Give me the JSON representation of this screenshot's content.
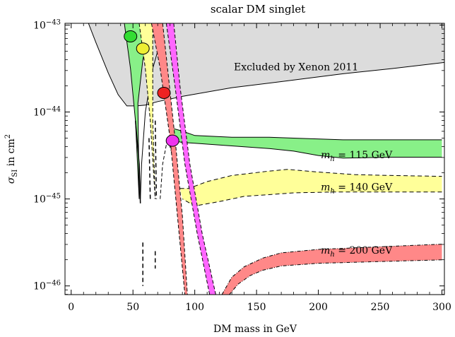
{
  "chart_data": {
    "type": "area",
    "title": "scalar DM singlet",
    "xlabel": "DM mass in GeV",
    "ylabel_main": "σ",
    "ylabel_sub": "SI",
    "ylabel_rest": " in cm",
    "ylabel_sup": "2",
    "xlim": [
      -5,
      302
    ],
    "ylim_log10": [
      -46.1,
      -42.98
    ],
    "y_scale": "log",
    "grid": false,
    "x_ticks": [
      0,
      50,
      100,
      150,
      200,
      250,
      300
    ],
    "y_ticks": [
      {
        "exp": -46,
        "base": "10",
        "sup": "−46"
      },
      {
        "exp": -45,
        "base": "10",
        "sup": "−45"
      },
      {
        "exp": -44,
        "base": "10",
        "sup": "−44"
      },
      {
        "exp": -43,
        "base": "10",
        "sup": "−43"
      }
    ],
    "excluded_region": {
      "label": "Excluded by Xenon 2011",
      "label_at": [
        182,
        -43.52
      ],
      "color": "#dcdcdc",
      "boundary": [
        [
          14,
          -42.98
        ],
        [
          20,
          -43.2
        ],
        [
          30,
          -43.55
        ],
        [
          38,
          -43.8
        ],
        [
          45,
          -43.93
        ],
        [
          53,
          -43.93
        ],
        [
          60,
          -43.92
        ],
        [
          70,
          -43.88
        ],
        [
          90,
          -43.82
        ],
        [
          130,
          -43.72
        ],
        [
          170,
          -43.65
        ],
        [
          220,
          -43.56
        ],
        [
          260,
          -43.5
        ],
        [
          302,
          -43.43
        ]
      ]
    },
    "bands": [
      {
        "name": "115",
        "label_m": "m",
        "label_sub": "h",
        "label_rest": " = 115 GeV",
        "label_at": [
          202,
          -44.53
        ],
        "color": "#88f088",
        "edge": "solid",
        "upper": [
          [
            80,
            -44.18
          ],
          [
            90,
            -44.22
          ],
          [
            100,
            -44.27
          ],
          [
            130,
            -44.29
          ],
          [
            160,
            -44.29
          ],
          [
            180,
            -44.3
          ],
          [
            220,
            -44.32
          ],
          [
            260,
            -44.32
          ],
          [
            300,
            -44.32
          ]
        ],
        "lower": [
          [
            300,
            -44.52
          ],
          [
            260,
            -44.52
          ],
          [
            220,
            -44.53
          ],
          [
            200,
            -44.5
          ],
          [
            180,
            -44.45
          ],
          [
            160,
            -44.42
          ],
          [
            140,
            -44.4
          ],
          [
            120,
            -44.38
          ],
          [
            100,
            -44.36
          ],
          [
            90,
            -44.35
          ],
          [
            82,
            -44.33
          ]
        ]
      },
      {
        "name": "140",
        "label_m": "m",
        "label_sub": "h",
        "label_rest": " = 140 GeV",
        "label_at": [
          202,
          -44.9
        ],
        "color": "#ffff99",
        "edge": "dashed",
        "upper": [
          [
            88,
            -44.88
          ],
          [
            95,
            -44.88
          ],
          [
            110,
            -44.8
          ],
          [
            130,
            -44.73
          ],
          [
            160,
            -44.68
          ],
          [
            175,
            -44.66
          ],
          [
            200,
            -44.69
          ],
          [
            230,
            -44.72
          ],
          [
            260,
            -44.73
          ],
          [
            300,
            -44.74
          ]
        ],
        "lower": [
          [
            300,
            -44.92
          ],
          [
            260,
            -44.92
          ],
          [
            230,
            -44.92
          ],
          [
            210,
            -44.92
          ],
          [
            180,
            -44.93
          ],
          [
            160,
            -44.95
          ],
          [
            140,
            -44.97
          ],
          [
            120,
            -45.03
          ],
          [
            100,
            -45.08
          ],
          [
            90,
            -45.0
          ]
        ]
      },
      {
        "name": "200",
        "label_m": "m",
        "label_sub": "h",
        "label_rest": " = 200 GeV",
        "label_at": [
          202,
          -45.63
        ],
        "color": "#ff8888",
        "edge": "dashdot",
        "upper": [
          [
            122,
            -46.1
          ],
          [
            130,
            -45.9
          ],
          [
            140,
            -45.78
          ],
          [
            155,
            -45.68
          ],
          [
            170,
            -45.62
          ],
          [
            200,
            -45.58
          ],
          [
            250,
            -45.55
          ],
          [
            300,
            -45.52
          ]
        ],
        "lower": [
          [
            300,
            -45.7
          ],
          [
            250,
            -45.72
          ],
          [
            200,
            -45.74
          ],
          [
            170,
            -45.77
          ],
          [
            155,
            -45.82
          ],
          [
            145,
            -45.88
          ],
          [
            135,
            -45.98
          ],
          [
            128,
            -46.1
          ]
        ]
      }
    ],
    "resonance_curves": [
      {
        "name": "115",
        "color": "#88f088",
        "edge": "#000",
        "left": [
          [
            43,
            -42.98
          ],
          [
            48,
            -43.5
          ],
          [
            52,
            -44.1
          ],
          [
            55,
            -45.0
          ]
        ],
        "right": [
          [
            64,
            -42.98
          ],
          [
            58,
            -43.4
          ],
          [
            54,
            -43.9
          ],
          [
            55,
            -45.0
          ]
        ],
        "spike": [
          [
            56,
            -45.0
          ],
          [
            57,
            -44.6
          ],
          [
            60,
            -44.0
          ],
          [
            66,
            -43.5
          ],
          [
            70,
            -43.3
          ],
          [
            74,
            -43.5
          ],
          [
            78,
            -44.0
          ],
          [
            82,
            -44.3
          ]
        ]
      },
      {
        "name": "140",
        "color": "#ffff99",
        "edge": "#000",
        "left": [
          [
            55,
            -42.98
          ],
          [
            60,
            -43.5
          ],
          [
            64,
            -44.1
          ],
          [
            68,
            -45.0
          ]
        ],
        "right": [
          [
            66,
            -42.98
          ],
          [
            66,
            -43.5
          ],
          [
            66,
            -44.1
          ],
          [
            68,
            -45.0
          ]
        ],
        "spike": [
          [
            72,
            -45.0
          ],
          [
            74,
            -44.6
          ],
          [
            78,
            -44.3
          ],
          [
            84,
            -44.6
          ],
          [
            88,
            -45.0
          ]
        ]
      },
      {
        "name": "200",
        "color": "#ff8888",
        "edge": "#000",
        "left": [
          [
            65,
            -42.98
          ],
          [
            72,
            -43.5
          ],
          [
            80,
            -44.3
          ],
          [
            86,
            -45.2
          ],
          [
            92,
            -46.1
          ]
        ],
        "right": [
          [
            74,
            -42.98
          ],
          [
            78,
            -43.5
          ],
          [
            84,
            -44.3
          ],
          [
            90,
            -45.2
          ],
          [
            94,
            -46.1
          ]
        ]
      },
      {
        "name": "magenta",
        "color": "#ff66ff",
        "edge": "#000",
        "left": [
          [
            77,
            -42.98
          ],
          [
            84,
            -43.7
          ],
          [
            92,
            -44.6
          ],
          [
            102,
            -45.4
          ],
          [
            112,
            -46.1
          ]
        ],
        "right": [
          [
            83,
            -42.98
          ],
          [
            88,
            -43.7
          ],
          [
            96,
            -44.6
          ],
          [
            106,
            -45.4
          ],
          [
            117,
            -46.1
          ]
        ]
      }
    ],
    "extra_lines": [
      {
        "style": "solid",
        "points": [
          [
            52,
            -44.1
          ],
          [
            55,
            -44.6
          ],
          [
            56,
            -45.05
          ]
        ]
      },
      {
        "style": "dashed",
        "points": [
          [
            58,
            -45.5
          ],
          [
            58,
            -46.0
          ]
        ]
      },
      {
        "style": "dashed",
        "points": [
          [
            63,
            -44.3
          ],
          [
            64,
            -45.0
          ]
        ]
      },
      {
        "style": "dashed",
        "points": [
          [
            68,
            -44.1
          ],
          [
            69,
            -45.0
          ]
        ]
      },
      {
        "style": "dashed",
        "points": [
          [
            68,
            -45.6
          ],
          [
            68,
            -45.8
          ]
        ]
      }
    ],
    "markers": [
      {
        "name": "green",
        "x": 48,
        "y_log10": -43.13,
        "color": "#33dd33"
      },
      {
        "name": "yellow",
        "x": 58,
        "y_log10": -43.27,
        "color": "#eeee33"
      },
      {
        "name": "red",
        "x": 75,
        "y_log10": -43.78,
        "color": "#ee2222"
      },
      {
        "name": "magenta",
        "x": 82,
        "y_log10": -44.33,
        "color": "#ee33ee"
      }
    ]
  }
}
